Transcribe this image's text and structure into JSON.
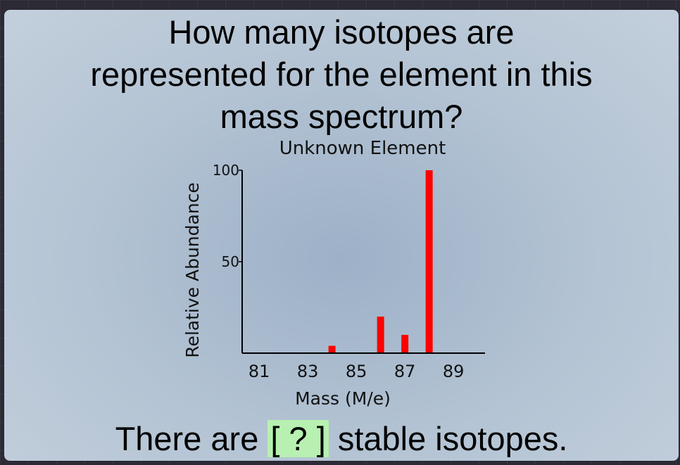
{
  "question": {
    "lines": [
      "How many isotopes are",
      "represented for the element in this",
      "mass spectrum?"
    ]
  },
  "answer": {
    "prefix": "There are ",
    "blank": "[ ? ]",
    "suffix": " stable isotopes."
  },
  "chart_data": {
    "type": "bar",
    "title": "Unknown Element",
    "xlabel": "Mass (M/e)",
    "ylabel": "Relative Abundance",
    "xticks": [
      81,
      83,
      85,
      87,
      89
    ],
    "yticks": [
      50,
      100
    ],
    "xlim": [
      80.3,
      90.3
    ],
    "ylim": [
      0,
      100
    ],
    "x": [
      84,
      86,
      87,
      88
    ],
    "values": [
      4,
      20,
      10,
      100
    ],
    "bar_color": "#ff0000"
  }
}
